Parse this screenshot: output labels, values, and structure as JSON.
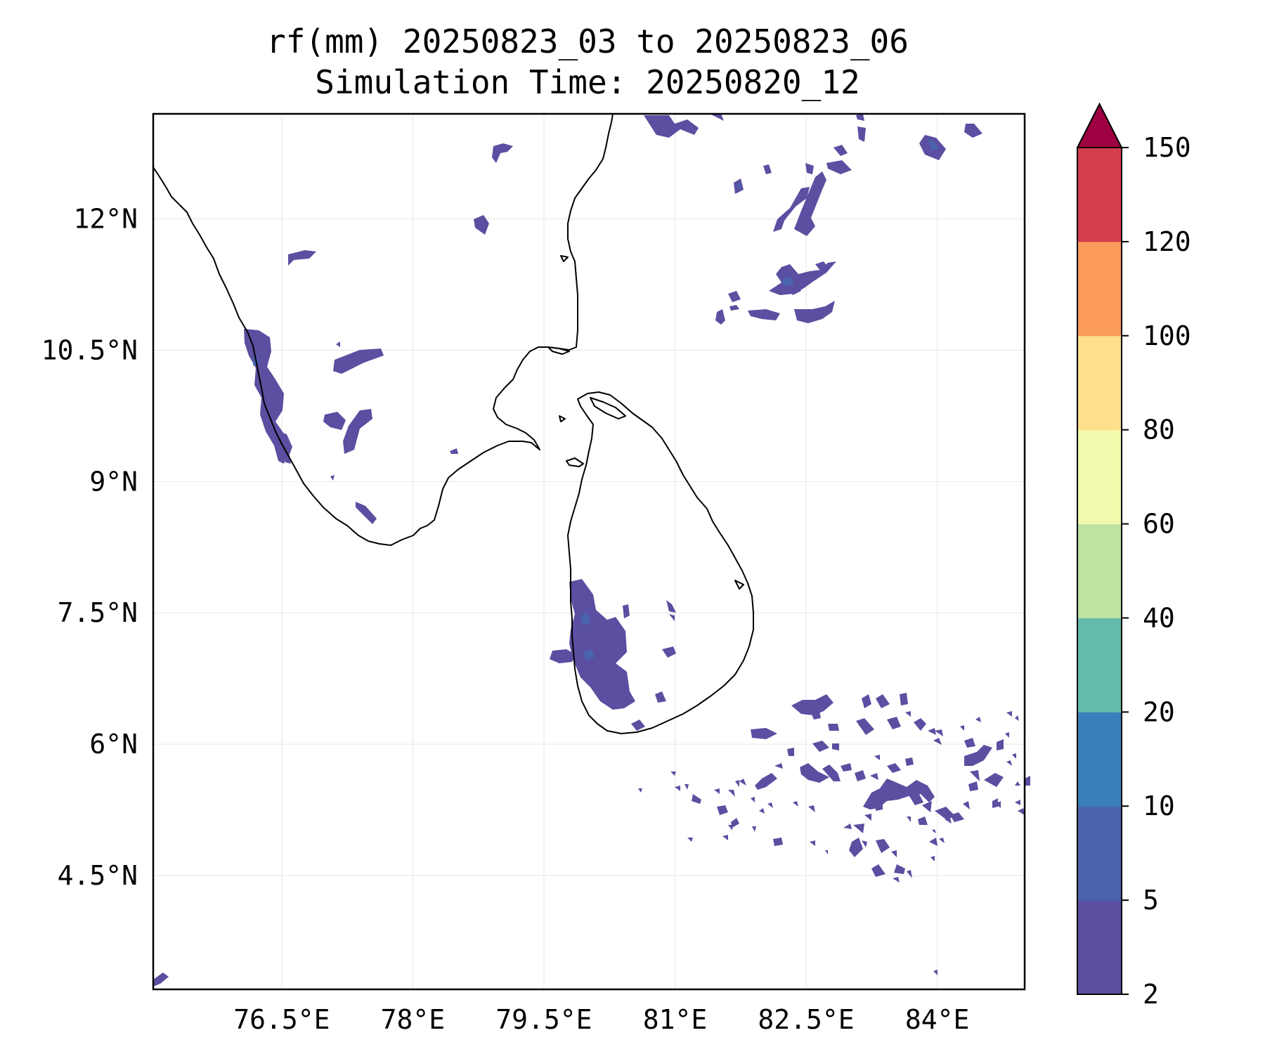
{
  "title": {
    "line1": "rf(mm) 20250823_03 to 20250823_06",
    "line2": "Simulation Time: 20250820_12"
  },
  "map": {
    "lon_range": [
      75.03,
      85.0
    ],
    "lat_range": [
      3.2,
      13.2
    ],
    "gridlines": true,
    "lon_ticks": [
      {
        "value": 76.5,
        "label": "76.5°E"
      },
      {
        "value": 78.0,
        "label": "78°E"
      },
      {
        "value": 79.5,
        "label": "79.5°E"
      },
      {
        "value": 81.0,
        "label": "81°E"
      },
      {
        "value": 82.5,
        "label": "82.5°E"
      },
      {
        "value": 84.0,
        "label": "84°E"
      }
    ],
    "lat_ticks": [
      {
        "value": 12.0,
        "label": "12°N"
      },
      {
        "value": 10.5,
        "label": "10.5°N"
      },
      {
        "value": 9.0,
        "label": "9°N"
      },
      {
        "value": 7.5,
        "label": "7.5°N"
      },
      {
        "value": 6.0,
        "label": "6°N"
      },
      {
        "value": 4.5,
        "label": "4.5°N"
      }
    ]
  },
  "colorbar": {
    "levels": [
      "2",
      "5",
      "10",
      "20",
      "40",
      "60",
      "80",
      "100",
      "120",
      "150"
    ],
    "colors": [
      "#5a4fa1",
      "#4a63ad",
      "#3780ba",
      "#63bba9",
      "#bde2a1",
      "#f3f9ac",
      "#fde089",
      "#fb9c5a",
      "#d53e4f"
    ],
    "extend_color": "#9e0142",
    "extend": "max"
  }
}
